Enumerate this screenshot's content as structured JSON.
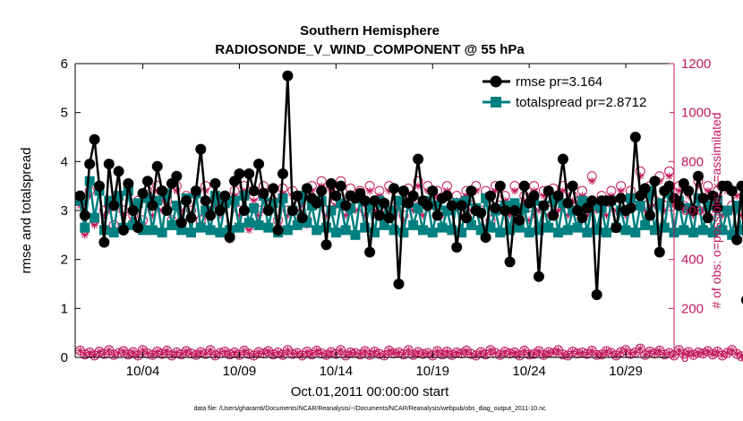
{
  "chart_data": {
    "type": "line",
    "title": "Southern Hemisphere",
    "subtitle": "RADIOSONDE_V_WIND_COMPONENT @ 55 hPa",
    "xlabel": "Oct.01,2011 00:00:00 start",
    "ylabel_left": "rmse and totalspread",
    "ylabel_right": "# of obs: o=possible; ×=assimilated",
    "footnote": "data file: /Users/gharamti/Documents/NCAR/Reanalysis/~/Documents/NCAR/Reanalysis/webpub/obs_diag_output_2011-10.nc",
    "xlim": [
      0.5,
      31.5
    ],
    "ylim_left": [
      0,
      6
    ],
    "ylim_right": [
      0,
      1200
    ],
    "x_ticks": [
      4,
      9,
      14,
      19,
      24,
      29
    ],
    "x_tick_labels": [
      "10/04",
      "10/09",
      "10/14",
      "10/19",
      "10/24",
      "10/29"
    ],
    "y_ticks_left": [
      0,
      1,
      2,
      3,
      4,
      5,
      6
    ],
    "y_tick_labels_left": [
      "0",
      "1",
      "2",
      "3",
      "4",
      "5",
      "6"
    ],
    "y_ticks_right": [
      0,
      200,
      400,
      600,
      800,
      1000,
      1200
    ],
    "y_tick_labels_right": [
      "0",
      "200",
      "400",
      "600",
      "800",
      "1000",
      "1200"
    ],
    "colors": {
      "rmse": "#000000",
      "totalspread": "#008080",
      "obs": "#c2185b"
    },
    "legend_position": "top-right",
    "series": [
      {
        "name": "rmse",
        "legend": "rmse pr=3.164",
        "axis": "left",
        "x_start": 0.75,
        "x_step": 0.25,
        "values": [
          3.3,
          2.9,
          3.95,
          4.45,
          3.5,
          2.35,
          3.95,
          3.1,
          3.8,
          2.6,
          3.55,
          3.0,
          2.65,
          3.35,
          3.6,
          3.1,
          3.9,
          3.4,
          3.0,
          3.55,
          3.7,
          2.75,
          3.2,
          2.85,
          3.4,
          4.25,
          3.2,
          2.9,
          3.55,
          3.0,
          3.3,
          2.45,
          3.6,
          3.75,
          3.0,
          3.75,
          3.4,
          3.95,
          3.35,
          3.0,
          3.45,
          2.6,
          3.75,
          5.75,
          3.0,
          3.3,
          2.85,
          3.45,
          3.25,
          3.15,
          3.4,
          2.3,
          3.55,
          3.3,
          3.5,
          3.1,
          3.3,
          3.25,
          3.35,
          3.2,
          2.15,
          3.2,
          2.9,
          3.15,
          2.85,
          3.45,
          1.5,
          3.4,
          3.15,
          3.3,
          4.05,
          3.2,
          3.1,
          3.4,
          2.9,
          3.25,
          3.3,
          3.1,
          2.25,
          3.1,
          2.85,
          3.4,
          3.0,
          2.95,
          2.45,
          3.3,
          3.05,
          3.5,
          3.0,
          1.95,
          3.0,
          2.8,
          3.5,
          3.15,
          3.3,
          1.65,
          3.1,
          3.4,
          2.9,
          3.3,
          4.05,
          3.15,
          3.5,
          3.0,
          2.85,
          3.05,
          3.2,
          1.28,
          3.2,
          3.2,
          3.2,
          2.65,
          3.25,
          3.0,
          3.05,
          4.5,
          3.3,
          3.45,
          2.9,
          3.6,
          2.15,
          3.4,
          3.5,
          3.25,
          3.1,
          3.55,
          3.4,
          3.0,
          3.7,
          3.25,
          2.85,
          3.3,
          3.05,
          3.5,
          3.5,
          3.4,
          2.4,
          3.5,
          1.17
        ]
      },
      {
        "name": "totalspread",
        "legend": "totalspread pr=2.8712",
        "axis": "left",
        "x_start": 0.75,
        "x_step": 0.25,
        "values": [
          3.2,
          2.65,
          3.6,
          2.85,
          3.4,
          2.6,
          3.2,
          2.55,
          3.3,
          2.65,
          3.4,
          2.7,
          3.15,
          2.6,
          3.25,
          2.6,
          3.2,
          2.55,
          3.35,
          2.7,
          3.1,
          2.6,
          3.25,
          2.55,
          3.35,
          2.65,
          3.0,
          2.6,
          3.3,
          2.55,
          3.15,
          2.6,
          3.2,
          2.65,
          3.3,
          2.75,
          3.05,
          2.7,
          3.3,
          2.65,
          3.15,
          2.55,
          3.25,
          2.6,
          3.0,
          2.7,
          3.3,
          2.75,
          3.1,
          2.6,
          3.2,
          2.65,
          3.0,
          2.55,
          3.15,
          2.6,
          3.05,
          2.5,
          3.25,
          2.65,
          3.1,
          2.55,
          3.2,
          2.7,
          3.0,
          2.6,
          3.2,
          2.55,
          3.15,
          2.7,
          3.05,
          2.6,
          3.2,
          2.55,
          3.1,
          2.65,
          3.0,
          2.6,
          3.15,
          2.55,
          3.2,
          2.7,
          3.05,
          2.6,
          3.25,
          2.65,
          3.0,
          2.55,
          3.1,
          2.6,
          3.15,
          2.65,
          3.05,
          2.55,
          3.2,
          2.6,
          3.1,
          2.65,
          3.25,
          2.55,
          3.15,
          2.6,
          3.0,
          2.65,
          3.2,
          2.55,
          3.1,
          2.6,
          3.05,
          2.55,
          3.2,
          2.65,
          3.0,
          2.6,
          3.25,
          2.55,
          3.1,
          2.7,
          3.4,
          2.6,
          3.15,
          2.65,
          3.35,
          2.55,
          3.2,
          2.6,
          3.05,
          2.55,
          3.25,
          2.6,
          3.1,
          2.55,
          3.2,
          2.6,
          3.0,
          2.5,
          3.1,
          2.6,
          2.6
        ]
      },
      {
        "name": "obs_possible",
        "marker": "o",
        "axis": "right",
        "x_start": 0.75,
        "x_step": 0.25,
        "values": [
          650,
          520,
          680,
          560,
          700,
          600,
          620,
          540,
          660,
          600,
          700,
          580,
          640,
          560,
          680,
          600,
          700,
          620,
          640,
          560,
          700,
          620,
          660,
          600,
          680,
          560,
          700,
          620,
          640,
          600,
          660,
          500,
          680,
          600,
          700,
          540,
          660,
          600,
          700,
          620,
          640,
          560,
          690,
          600,
          680,
          620,
          650,
          560,
          700,
          640,
          720,
          600,
          700,
          640,
          720,
          600,
          690,
          620,
          680,
          600,
          700,
          620,
          680,
          580,
          700,
          600,
          660,
          580,
          690,
          620,
          720,
          600,
          700,
          640,
          680,
          600,
          700,
          620,
          660,
          600,
          680,
          620,
          700,
          600,
          680,
          560,
          700,
          620,
          660,
          600,
          700,
          600,
          660,
          580,
          700,
          620,
          680,
          600,
          690,
          620,
          700,
          600,
          660,
          620,
          680,
          600,
          740,
          620,
          660,
          600,
          680,
          620,
          700,
          600,
          680,
          640,
          760,
          620,
          700,
          640,
          740,
          620,
          760,
          640,
          700,
          620,
          680,
          600,
          720,
          620,
          700,
          640,
          680,
          600,
          700,
          620,
          680,
          600,
          640
        ]
      },
      {
        "name": "obs_assimilated",
        "marker": "*",
        "axis": "right",
        "x_start": 0.75,
        "x_step": 0.25,
        "values": [
          620,
          500,
          660,
          540,
          680,
          580,
          600,
          520,
          640,
          580,
          680,
          560,
          620,
          540,
          660,
          580,
          680,
          600,
          620,
          540,
          680,
          600,
          640,
          580,
          660,
          540,
          680,
          600,
          620,
          580,
          640,
          480,
          660,
          580,
          680,
          520,
          640,
          580,
          680,
          600,
          620,
          540,
          670,
          580,
          660,
          600,
          630,
          540,
          680,
          620,
          700,
          580,
          680,
          620,
          700,
          580,
          670,
          600,
          660,
          580,
          680,
          600,
          660,
          560,
          680,
          580,
          640,
          560,
          670,
          600,
          700,
          580,
          680,
          620,
          660,
          580,
          680,
          600,
          640,
          580,
          660,
          600,
          680,
          580,
          660,
          540,
          680,
          600,
          640,
          580,
          680,
          580,
          640,
          560,
          680,
          600,
          660,
          580,
          670,
          600,
          680,
          580,
          640,
          600,
          660,
          580,
          720,
          600,
          640,
          580,
          660,
          600,
          680,
          580,
          660,
          620,
          740,
          600,
          680,
          620,
          720,
          600,
          740,
          620,
          680,
          600,
          660,
          580,
          700,
          600,
          680,
          620,
          660,
          580,
          680,
          600,
          660,
          580,
          620
        ]
      },
      {
        "name": "obs_possible_low",
        "marker": "o",
        "axis": "right",
        "x_start": 0.75,
        "x_step": 0.25,
        "values": [
          28,
          12,
          20,
          8,
          24,
          14,
          30,
          10,
          18,
          26,
          12,
          22,
          8,
          30,
          16,
          10,
          24,
          14,
          28,
          8,
          20,
          12,
          26,
          16,
          10,
          22,
          14,
          30,
          8,
          18,
          24,
          12,
          20,
          10,
          28,
          14,
          8,
          22,
          16,
          26,
          12,
          20,
          10,
          30,
          14,
          18,
          8,
          24,
          12,
          28,
          16,
          10,
          22,
          14,
          30,
          8,
          20,
          18,
          12,
          26,
          10,
          24,
          14,
          8,
          28,
          16,
          20,
          12,
          30,
          10,
          22,
          14,
          18,
          8,
          26,
          12,
          24,
          10,
          20,
          16,
          28,
          14,
          8,
          22,
          12,
          30,
          18,
          10,
          24,
          16,
          20,
          8,
          28,
          12,
          14,
          26,
          10,
          22,
          18,
          30,
          12,
          8,
          24,
          16,
          20,
          14,
          28,
          10,
          12,
          26,
          18,
          8,
          22,
          30,
          14,
          20,
          36,
          10,
          24,
          16,
          28,
          12,
          18,
          8,
          30,
          14,
          22,
          10,
          20,
          16,
          26,
          12,
          24,
          8,
          18,
          30,
          14,
          4,
          2
        ]
      },
      {
        "name": "obs_assimilated_low",
        "marker": "*",
        "axis": "right",
        "x_start": 0.75,
        "x_step": 0.25,
        "values": [
          28,
          12,
          20,
          8,
          24,
          14,
          30,
          10,
          18,
          26,
          12,
          22,
          8,
          30,
          16,
          10,
          24,
          14,
          28,
          8,
          20,
          12,
          26,
          16,
          10,
          22,
          14,
          30,
          8,
          18,
          24,
          12,
          20,
          10,
          28,
          14,
          8,
          22,
          16,
          26,
          12,
          20,
          10,
          30,
          14,
          18,
          8,
          24,
          12,
          28,
          16,
          10,
          22,
          14,
          30,
          8,
          20,
          18,
          12,
          26,
          10,
          24,
          14,
          8,
          28,
          16,
          20,
          12,
          30,
          10,
          22,
          14,
          18,
          8,
          26,
          12,
          24,
          10,
          20,
          16,
          28,
          14,
          8,
          22,
          12,
          30,
          18,
          10,
          24,
          16,
          20,
          8,
          28,
          12,
          14,
          26,
          10,
          22,
          18,
          30,
          12,
          8,
          24,
          16,
          20,
          14,
          28,
          10,
          12,
          26,
          18,
          8,
          22,
          30,
          14,
          20,
          36,
          10,
          24,
          16,
          28,
          12,
          18,
          8,
          30,
          14,
          22,
          10,
          20,
          16,
          26,
          12,
          24,
          8,
          18,
          30,
          14,
          4,
          2
        ]
      }
    ]
  }
}
